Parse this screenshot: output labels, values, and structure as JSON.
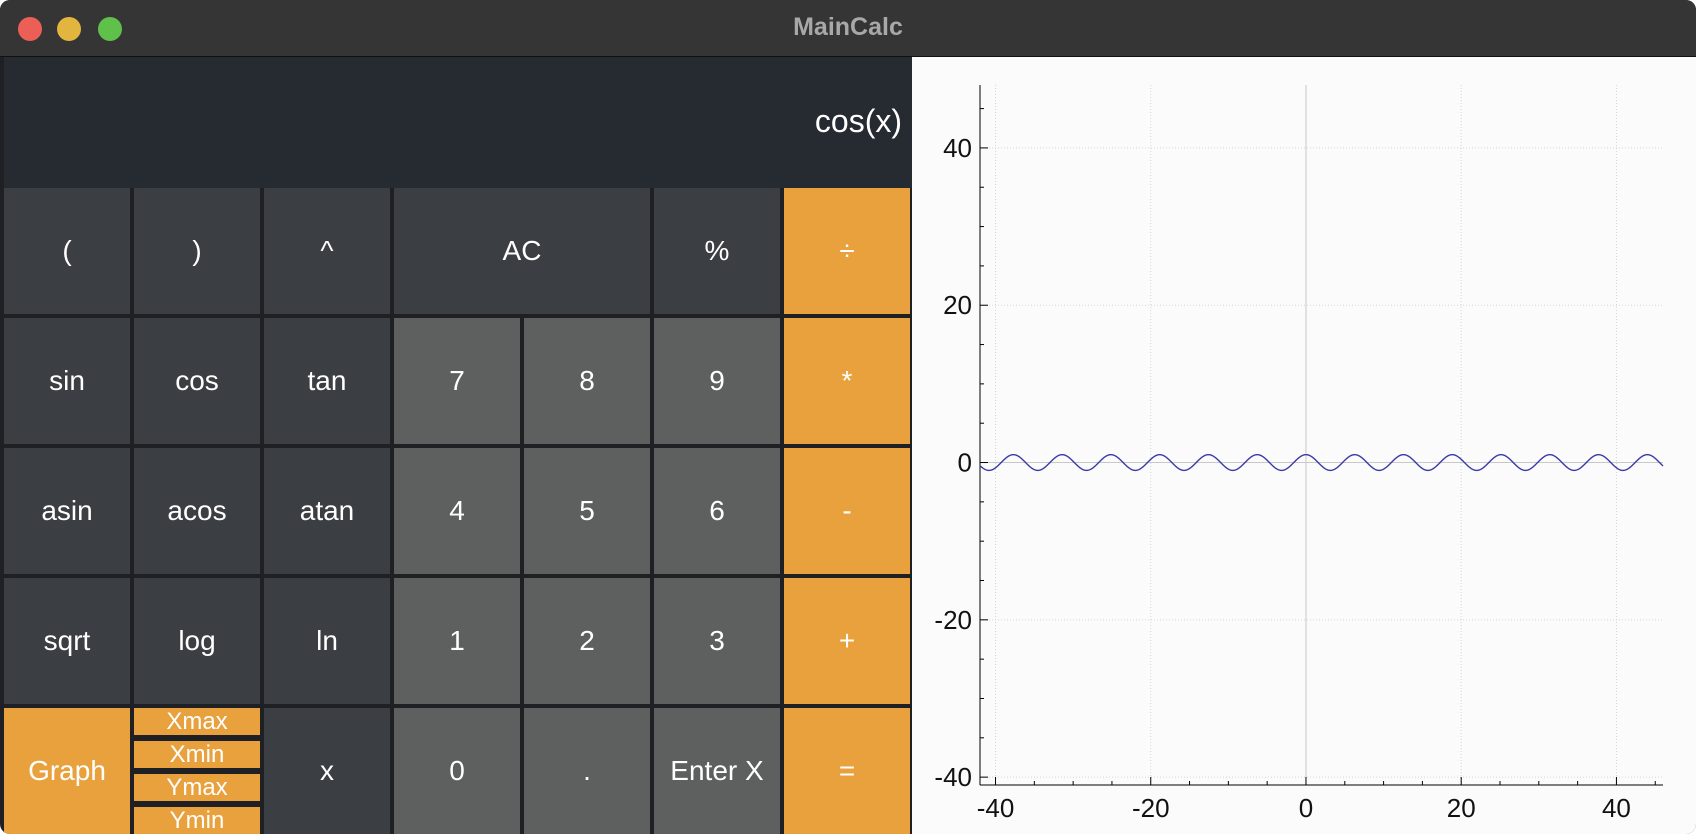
{
  "window": {
    "title": "MainCalc"
  },
  "display": {
    "expression": "cos(x)"
  },
  "keys": {
    "lparen": "(",
    "rparen": ")",
    "pow": "^",
    "ac": "AC",
    "percent": "%",
    "divide": "÷",
    "sin": "sin",
    "cos": "cos",
    "tan": "tan",
    "seven": "7",
    "eight": "8",
    "nine": "9",
    "multiply": "*",
    "asin": "asin",
    "acos": "acos",
    "atan": "atan",
    "four": "4",
    "five": "5",
    "six": "6",
    "minus": "-",
    "sqrt": "sqrt",
    "log": "log",
    "ln": "ln",
    "one": "1",
    "two": "2",
    "three": "3",
    "plus": "+",
    "graph": "Graph",
    "xmax": "Xmax",
    "xmin": "Xmin",
    "ymax": "Ymax",
    "ymin": "Ymin",
    "x": "x",
    "zero": "0",
    "dot": ".",
    "enter_x": "Enter X",
    "equals": "="
  },
  "colors": {
    "operator": "#e8a13d",
    "function_key": "#3b3e42",
    "digit_key": "#5d605f",
    "curve": "#3a3aa8"
  },
  "chart_data": {
    "type": "line",
    "function": "cos(x)",
    "xlim": [
      -42,
      46
    ],
    "ylim": [
      -41,
      48
    ],
    "x_ticks": [
      -40,
      -20,
      0,
      20,
      40
    ],
    "y_ticks": [
      -40,
      -20,
      0,
      20,
      40
    ],
    "x_tick_labels": [
      "-40",
      "-20",
      "0",
      "20",
      "40"
    ],
    "y_tick_labels": [
      "-40",
      "-20",
      "0",
      "20",
      "40"
    ],
    "grid": true,
    "series": [
      {
        "x_range": [
          -42,
          46
        ],
        "expression": "cos(x)"
      }
    ]
  }
}
